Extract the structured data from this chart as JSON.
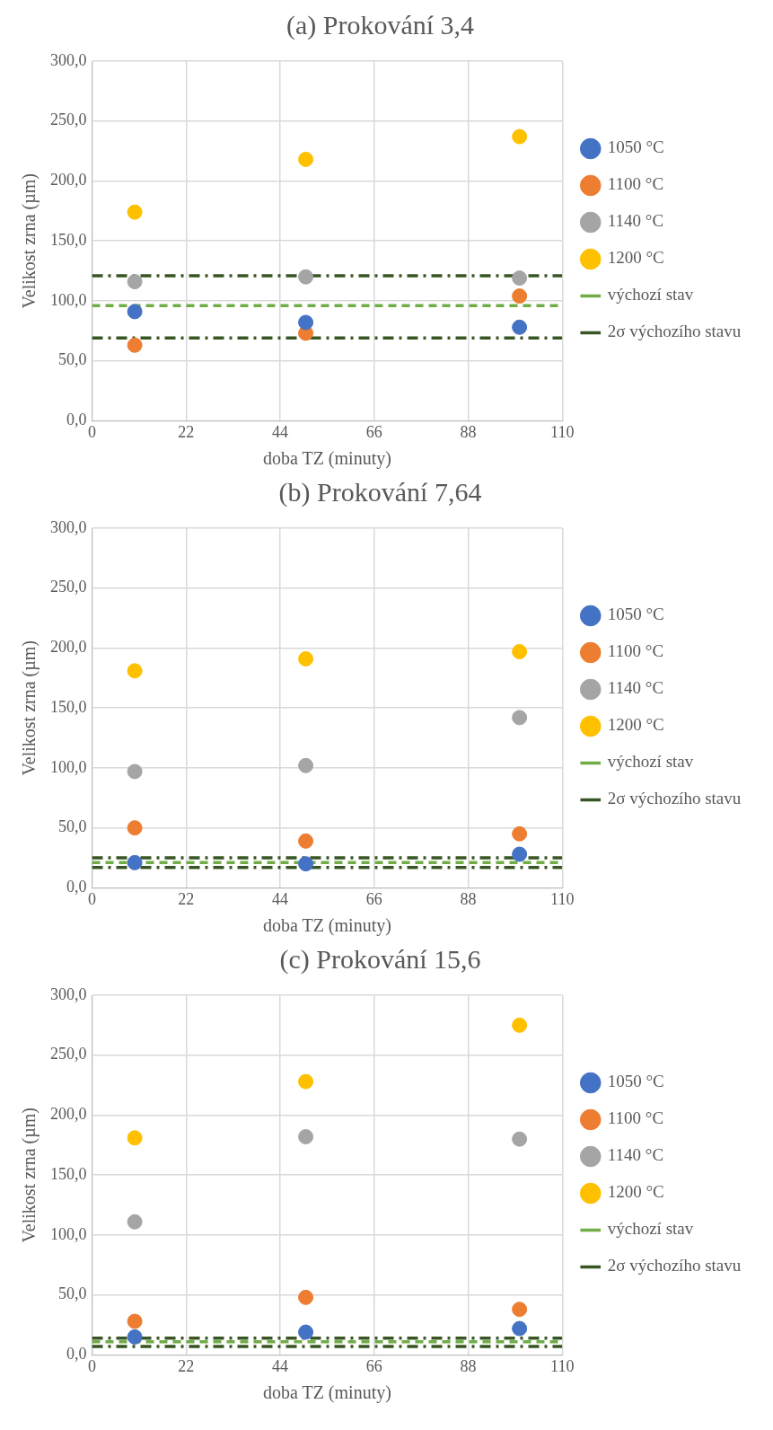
{
  "chart_data": [
    {
      "type": "scatter",
      "title": "(a) Prokování 3,4",
      "xlabel": "doba TZ (minuty)",
      "ylabel": "Velikost zrna (µm)",
      "xlim": [
        0,
        110
      ],
      "xticks": [
        0,
        22,
        44,
        66,
        88,
        110
      ],
      "ylim": [
        0,
        300
      ],
      "yticks": [
        {
          "value": 0,
          "label": "0,0"
        },
        {
          "value": 50,
          "label": "50,0"
        },
        {
          "value": 100,
          "label": "100,0"
        },
        {
          "value": 150,
          "label": "150,0"
        },
        {
          "value": 200,
          "label": "200,0"
        },
        {
          "value": 250,
          "label": "250,0"
        },
        {
          "value": 300,
          "label": "300,0"
        }
      ],
      "grid": true,
      "legend": "right",
      "x": [
        10,
        50,
        100
      ],
      "series": [
        {
          "name": "1050 °C",
          "color": "#4472c4",
          "marker": "circle",
          "values": [
            91,
            82,
            78
          ]
        },
        {
          "name": "1100 °C",
          "color": "#ed7d31",
          "marker": "circle",
          "values": [
            63,
            73,
            104
          ]
        },
        {
          "name": "1140 °C",
          "color": "#a5a5a5",
          "marker": "circle",
          "values": [
            116,
            120,
            119
          ]
        },
        {
          "name": "1200 °C",
          "color": "#ffc000",
          "marker": "circle",
          "values": [
            174,
            218,
            237
          ]
        }
      ],
      "ref_lines": [
        {
          "axis": "y",
          "value": 96,
          "label": "výchozí stav",
          "line_style": "dashed",
          "color": "#70ad47"
        },
        {
          "axis": "y",
          "value": 121,
          "label": "2σ výchozího stavu",
          "line_style": "dashdot",
          "color": "#375623"
        },
        {
          "axis": "y",
          "value": 69,
          "line_style": "dashdot",
          "color": "#375623"
        }
      ]
    },
    {
      "type": "scatter",
      "title": "(b) Prokování 7,64",
      "xlabel": "doba TZ (minuty)",
      "ylabel": "Velikost zrna (µm)",
      "xlim": [
        0,
        110
      ],
      "xticks": [
        0,
        22,
        44,
        66,
        88,
        110
      ],
      "ylim": [
        0,
        300
      ],
      "yticks": [
        {
          "value": 0,
          "label": "0,0"
        },
        {
          "value": 50,
          "label": "50,0"
        },
        {
          "value": 100,
          "label": "100,0"
        },
        {
          "value": 150,
          "label": "150,0"
        },
        {
          "value": 200,
          "label": "200,0"
        },
        {
          "value": 250,
          "label": "250,0"
        },
        {
          "value": 300,
          "label": "300,0"
        }
      ],
      "grid": true,
      "legend": "right",
      "x": [
        10,
        50,
        100
      ],
      "series": [
        {
          "name": "1050 °C",
          "color": "#4472c4",
          "marker": "circle",
          "values": [
            21,
            20,
            28
          ]
        },
        {
          "name": "1100 °C",
          "color": "#ed7d31",
          "marker": "circle",
          "values": [
            50,
            39,
            45
          ]
        },
        {
          "name": "1140 °C",
          "color": "#a5a5a5",
          "marker": "circle",
          "values": [
            97,
            102,
            142
          ]
        },
        {
          "name": "1200 °C",
          "color": "#ffc000",
          "marker": "circle",
          "values": [
            181,
            191,
            197
          ]
        }
      ],
      "ref_lines": [
        {
          "axis": "y",
          "value": 21,
          "label": "výchozí stav",
          "line_style": "dashed",
          "color": "#70ad47"
        },
        {
          "axis": "y",
          "value": 25,
          "label": "2σ výchozího stavu",
          "line_style": "dashdot",
          "color": "#375623"
        },
        {
          "axis": "y",
          "value": 17,
          "line_style": "dashdot",
          "color": "#375623"
        }
      ]
    },
    {
      "type": "scatter",
      "title": "(c) Prokování 15,6",
      "xlabel": "doba TZ (minuty)",
      "ylabel": "Velikost zrna (µm)",
      "xlim": [
        0,
        110
      ],
      "xticks": [
        0,
        22,
        44,
        66,
        88,
        110
      ],
      "ylim": [
        0,
        300
      ],
      "yticks": [
        {
          "value": 0,
          "label": "0,0"
        },
        {
          "value": 50,
          "label": "50,0"
        },
        {
          "value": 100,
          "label": "100,0"
        },
        {
          "value": 150,
          "label": "150,0"
        },
        {
          "value": 200,
          "label": "200,0"
        },
        {
          "value": 250,
          "label": "250,0"
        },
        {
          "value": 300,
          "label": "300,0"
        }
      ],
      "grid": true,
      "legend": "right",
      "x": [
        10,
        50,
        100
      ],
      "series": [
        {
          "name": "1050 °C",
          "color": "#4472c4",
          "marker": "circle",
          "values": [
            15,
            19,
            22
          ]
        },
        {
          "name": "1100 °C",
          "color": "#ed7d31",
          "marker": "circle",
          "values": [
            28,
            48,
            38
          ]
        },
        {
          "name": "1140 °C",
          "color": "#a5a5a5",
          "marker": "circle",
          "values": [
            111,
            182,
            180
          ]
        },
        {
          "name": "1200 °C",
          "color": "#ffc000",
          "marker": "circle",
          "values": [
            181,
            228,
            275
          ]
        }
      ],
      "ref_lines": [
        {
          "axis": "y",
          "value": 11,
          "label": "výchozí stav",
          "line_style": "dashed",
          "color": "#70ad47"
        },
        {
          "axis": "y",
          "value": 14,
          "label": "2σ výchozího stavu",
          "line_style": "dashdot",
          "color": "#375623"
        },
        {
          "axis": "y",
          "value": 7,
          "line_style": "dashdot",
          "color": "#375623"
        }
      ]
    }
  ]
}
